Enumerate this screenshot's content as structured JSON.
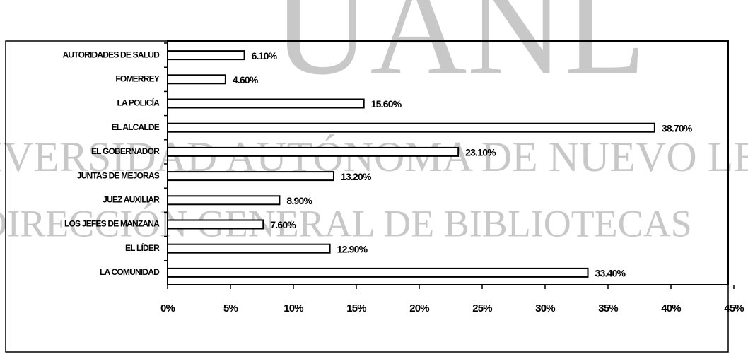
{
  "chart_data": {
    "type": "hbar",
    "categories": [
      "AUTORIDADES DE SALUD",
      "FOMERREY",
      "LA POLICÍA",
      "EL ALCALDE",
      "EL GOBERNADOR",
      "JUNTAS DE MEJORAS",
      "JUEZ AUXILIAR",
      "LOS JEFES DE MANZANA",
      "EL LÍDER",
      "LA COMUNIDAD"
    ],
    "values": [
      6.1,
      4.6,
      15.6,
      38.7,
      23.1,
      13.2,
      8.9,
      7.6,
      12.9,
      33.4
    ],
    "value_labels": [
      "6.10%",
      "4.60%",
      "15.60%",
      "38.70%",
      "23.10%",
      "13.20%",
      "8.90%",
      "7.60%",
      "12.90%",
      "33.40%"
    ],
    "color": "#ffffff",
    "xlim": [
      0,
      45
    ],
    "xticks": [
      {
        "value": 0,
        "label": "0%"
      },
      {
        "value": 5,
        "label": "5%"
      },
      {
        "value": 10,
        "label": "10%"
      },
      {
        "value": 15,
        "label": "15%"
      },
      {
        "value": 20,
        "label": "20%"
      },
      {
        "value": 25,
        "label": "25%"
      },
      {
        "value": 30,
        "label": "30%"
      },
      {
        "value": 35,
        "label": "35%"
      },
      {
        "value": 40,
        "label": "40%"
      },
      {
        "value": 45,
        "label": "45%"
      }
    ],
    "grid": false
  },
  "watermark": {
    "logo": "UANL",
    "line1": "UNIVERSIDAD AUTÓNOMA DE NUEVO LEÓN",
    "line2": "DIRECCIÓN GENERAL DE BIBLIOTECAS"
  }
}
